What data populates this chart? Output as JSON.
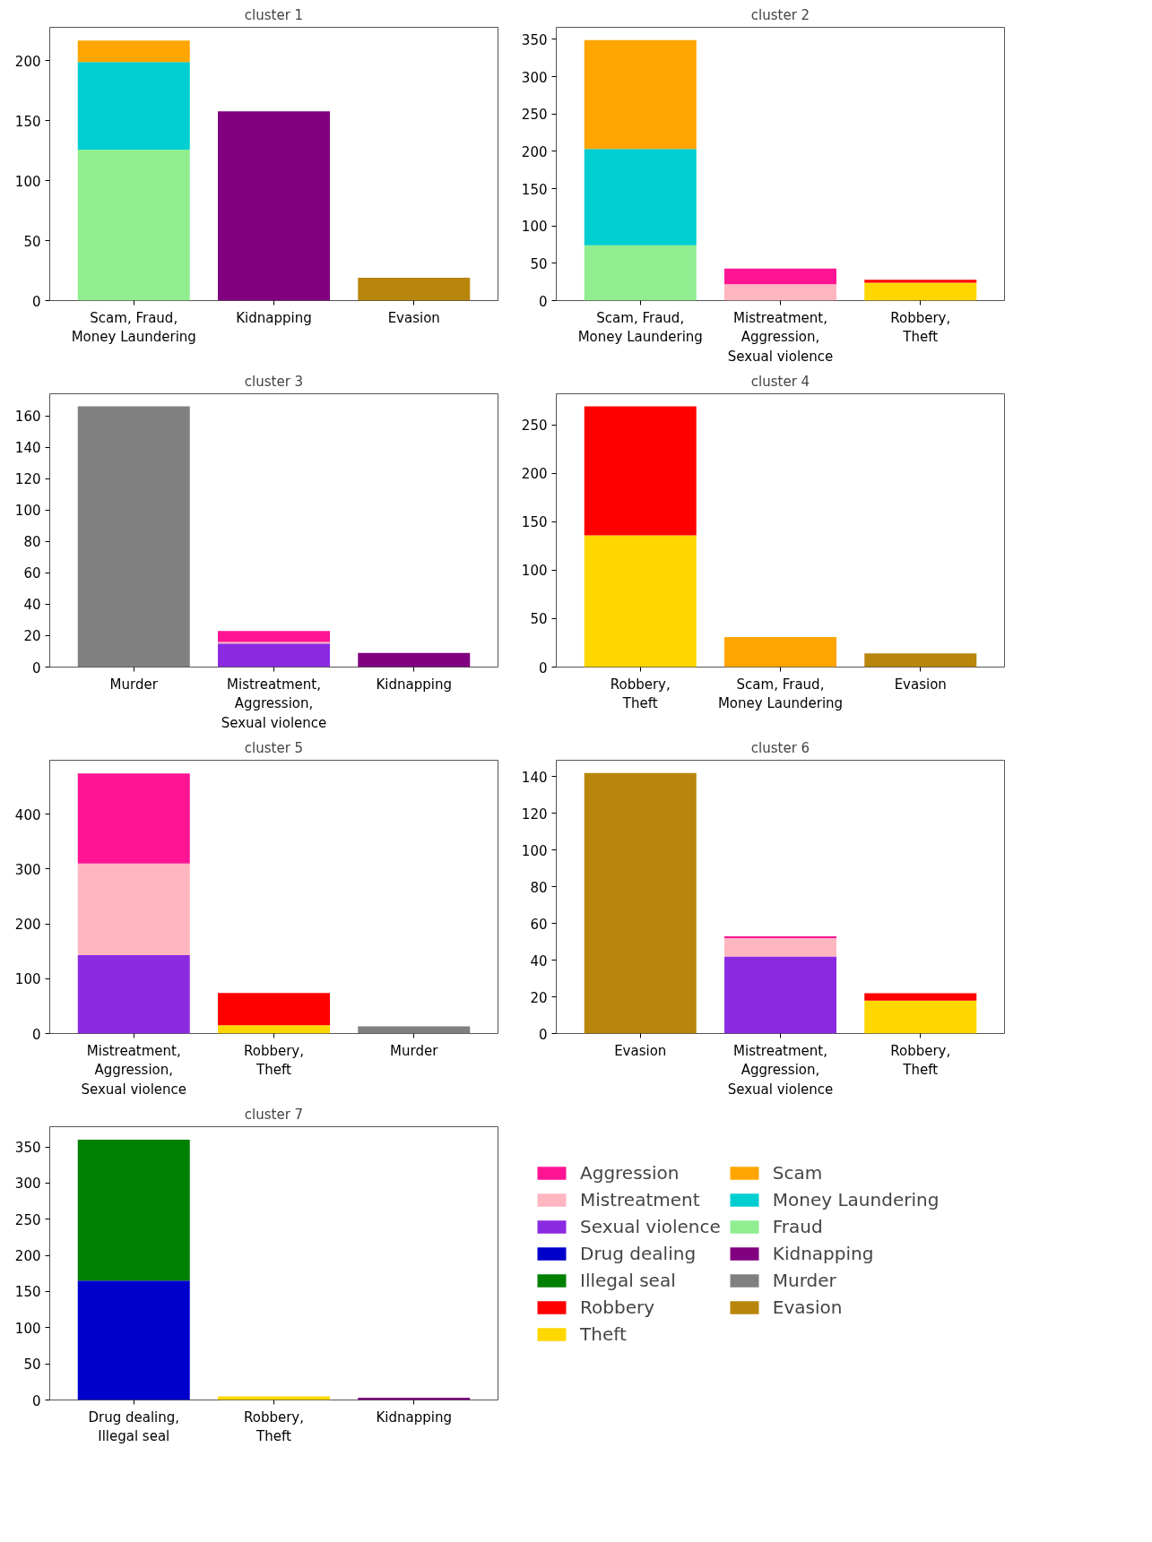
{
  "chart_data": [
    {
      "type": "bar",
      "title": "cluster 1",
      "stacked": true,
      "categories": [
        "Scam, Fraud,\nMoney Laundering",
        "Kidnapping",
        "Evasion"
      ],
      "ylim": [
        0,
        228
      ],
      "yticks": [
        0,
        50,
        100,
        150,
        200
      ],
      "series": [
        {
          "color": "#90ee90",
          "values": [
            126,
            null,
            null
          ]
        },
        {
          "color": "#00ced1",
          "values": [
            73,
            null,
            null
          ]
        },
        {
          "color": "#ffa500",
          "values": [
            18,
            null,
            null
          ]
        },
        {
          "color": "#800080",
          "values": [
            null,
            158,
            null
          ]
        },
        {
          "color": "#b8860b",
          "values": [
            null,
            null,
            19
          ]
        }
      ]
    },
    {
      "type": "bar",
      "title": "cluster 2",
      "stacked": true,
      "categories": [
        "Scam, Fraud,\nMoney Laundering",
        "Mistreatment,\nAggression,\nSexual violence",
        "Robbery,\nTheft"
      ],
      "ylim": [
        0,
        366
      ],
      "yticks": [
        0,
        50,
        100,
        150,
        200,
        250,
        300,
        350
      ],
      "series": [
        {
          "color": "#90ee90",
          "values": [
            74,
            null,
            null
          ]
        },
        {
          "color": "#00ced1",
          "values": [
            129,
            null,
            null
          ]
        },
        {
          "color": "#ffa500",
          "values": [
            146,
            null,
            null
          ]
        },
        {
          "color": "#ffb6c1",
          "values": [
            null,
            22,
            null
          ]
        },
        {
          "color": "#ff1493",
          "values": [
            null,
            21,
            null
          ]
        },
        {
          "color": "#ffd700",
          "values": [
            null,
            null,
            24
          ]
        },
        {
          "color": "#ff0000",
          "values": [
            null,
            null,
            4
          ]
        }
      ]
    },
    {
      "type": "bar",
      "title": "cluster 3",
      "stacked": true,
      "categories": [
        "Murder",
        "Mistreatment,\nAggression,\nSexual violence",
        "Kidnapping"
      ],
      "ylim": [
        0,
        174
      ],
      "yticks": [
        0,
        20,
        40,
        60,
        80,
        100,
        120,
        140,
        160
      ],
      "series": [
        {
          "color": "#808080",
          "values": [
            166,
            null,
            null
          ]
        },
        {
          "color": "#8a2be2",
          "values": [
            null,
            15,
            null
          ]
        },
        {
          "color": "#ffb6c1",
          "values": [
            null,
            1,
            null
          ]
        },
        {
          "color": "#ff1493",
          "values": [
            null,
            7,
            null
          ]
        },
        {
          "color": "#800080",
          "values": [
            null,
            null,
            9
          ]
        }
      ]
    },
    {
      "type": "bar",
      "title": "cluster 4",
      "stacked": true,
      "categories": [
        "Robbery,\nTheft",
        "Scam, Fraud,\nMoney Laundering",
        "Evasion"
      ],
      "ylim": [
        0,
        282
      ],
      "yticks": [
        0,
        50,
        100,
        150,
        200,
        250
      ],
      "series": [
        {
          "color": "#ffd700",
          "values": [
            136,
            null,
            null
          ]
        },
        {
          "color": "#ff0000",
          "values": [
            133,
            null,
            null
          ]
        },
        {
          "color": "#ffa500",
          "values": [
            null,
            31,
            null
          ]
        },
        {
          "color": "#b8860b",
          "values": [
            null,
            null,
            14
          ]
        }
      ]
    },
    {
      "type": "bar",
      "title": "cluster 5",
      "stacked": true,
      "categories": [
        "Mistreatment,\nAggression,\nSexual violence",
        "Robbery,\nTheft",
        "Murder"
      ],
      "ylim": [
        0,
        498
      ],
      "yticks": [
        0,
        100,
        200,
        300,
        400
      ],
      "series": [
        {
          "color": "#8a2be2",
          "values": [
            143,
            null,
            null
          ]
        },
        {
          "color": "#ffb6c1",
          "values": [
            167,
            null,
            null
          ]
        },
        {
          "color": "#ff1493",
          "values": [
            164,
            null,
            null
          ]
        },
        {
          "color": "#ffd700",
          "values": [
            null,
            15,
            null
          ]
        },
        {
          "color": "#ff0000",
          "values": [
            null,
            59,
            null
          ]
        },
        {
          "color": "#808080",
          "values": [
            null,
            null,
            13
          ]
        }
      ]
    },
    {
      "type": "bar",
      "title": "cluster 6",
      "stacked": true,
      "categories": [
        "Evasion",
        "Mistreatment,\nAggression,\nSexual violence",
        "Robbery,\nTheft"
      ],
      "ylim": [
        0,
        149
      ],
      "yticks": [
        0,
        20,
        40,
        60,
        80,
        100,
        120,
        140
      ],
      "series": [
        {
          "color": "#b8860b",
          "values": [
            142,
            null,
            null
          ]
        },
        {
          "color": "#8a2be2",
          "values": [
            null,
            42,
            null
          ]
        },
        {
          "color": "#ffb6c1",
          "values": [
            null,
            10,
            null
          ]
        },
        {
          "color": "#ff1493",
          "values": [
            null,
            1,
            null
          ]
        },
        {
          "color": "#ffd700",
          "values": [
            null,
            null,
            18
          ]
        },
        {
          "color": "#ff0000",
          "values": [
            null,
            null,
            4
          ]
        }
      ]
    },
    {
      "type": "bar",
      "title": "cluster 7",
      "stacked": true,
      "legend": "right",
      "categories": [
        "Drug dealing,\nIllegal seal",
        "Robbery,\nTheft",
        "Kidnapping"
      ],
      "ylim": [
        0,
        378
      ],
      "yticks": [
        0,
        50,
        100,
        150,
        200,
        250,
        300,
        350
      ],
      "series": [
        {
          "name": "Aggression",
          "color": "#ff1493",
          "values": [
            null,
            null,
            null
          ]
        },
        {
          "name": "Mistreatment",
          "color": "#ffb6c1",
          "values": [
            null,
            null,
            null
          ]
        },
        {
          "name": "Sexual violence",
          "color": "#8a2be2",
          "values": [
            null,
            null,
            null
          ]
        },
        {
          "name": "Drug dealing",
          "color": "#0000cd",
          "values": [
            165,
            null,
            null
          ]
        },
        {
          "name": "Illegal seal",
          "color": "#008000",
          "values": [
            195,
            null,
            null
          ]
        },
        {
          "name": "Robbery",
          "color": "#ff0000",
          "values": [
            null,
            null,
            null
          ]
        },
        {
          "name": "Theft",
          "color": "#ffd700",
          "values": [
            null,
            5,
            null
          ]
        },
        {
          "name": "Scam",
          "color": "#ffa500",
          "values": [
            null,
            null,
            null
          ]
        },
        {
          "name": "Money Laundering",
          "color": "#00ced1",
          "values": [
            null,
            null,
            null
          ]
        },
        {
          "name": "Fraud",
          "color": "#90ee90",
          "values": [
            null,
            null,
            null
          ]
        },
        {
          "name": "Kidnapping",
          "color": "#800080",
          "values": [
            null,
            null,
            3
          ]
        },
        {
          "name": "Murder",
          "color": "#808080",
          "values": [
            null,
            null,
            null
          ]
        },
        {
          "name": "Evasion",
          "color": "#b8860b",
          "values": [
            null,
            null,
            null
          ]
        }
      ]
    }
  ]
}
